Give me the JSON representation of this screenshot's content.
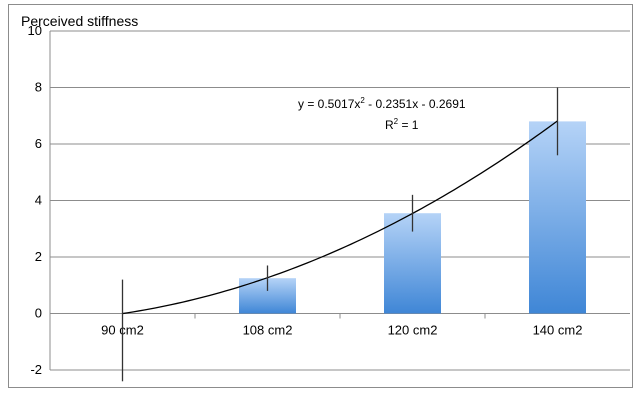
{
  "chart_data": {
    "type": "bar",
    "title": "Perceived stiffness",
    "categories": [
      "90 cm2",
      "108 cm2",
      "120 cm2",
      "140 cm2"
    ],
    "values": [
      0.0,
      1.25,
      3.55,
      6.8
    ],
    "error_bars": [
      {
        "low": -2.4,
        "high": 1.2
      },
      {
        "low": 0.8,
        "high": 1.7
      },
      {
        "low": 2.9,
        "high": 4.2
      },
      {
        "low": 5.6,
        "high": 8.0
      }
    ],
    "ylim": [
      -2,
      10
    ],
    "yticks": [
      -2,
      0,
      2,
      4,
      6,
      8,
      10
    ],
    "grid": true,
    "bar_color": "#6fa8e6",
    "trendline": {
      "type": "polynomial",
      "coefficients": [
        0.5017,
        -0.2351,
        -0.2691
      ],
      "equation_prefix": "y = 0.5017x",
      "equation_exp": "2",
      "equation_suffix": " - 0.2351x - 0.2691",
      "r2_prefix": "R",
      "r2_exp": "2",
      "r2_suffix": " = 1"
    }
  }
}
